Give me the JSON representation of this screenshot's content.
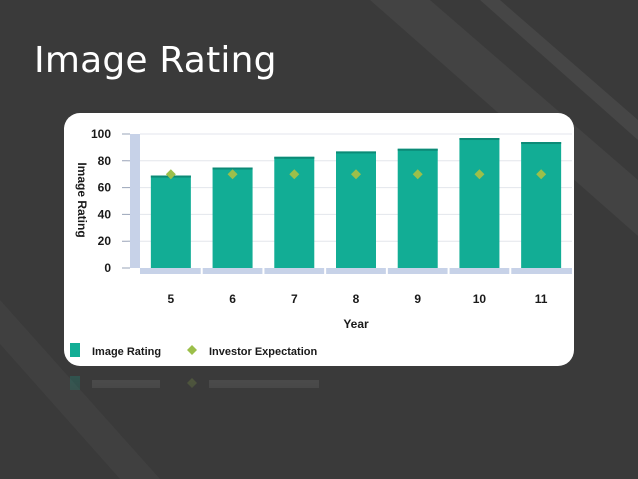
{
  "slide": {
    "title": "Image Rating",
    "colors": {
      "background": "#3a3a3a",
      "stripe": "#464646",
      "card": "#ffffff"
    }
  },
  "chart_data": {
    "type": "bar",
    "categories": [
      "5",
      "6",
      "7",
      "8",
      "9",
      "10",
      "11"
    ],
    "series": [
      {
        "name": "Image Rating",
        "type": "bar",
        "color": "#12ad95",
        "values": [
          69,
          75,
          83,
          87,
          89,
          97,
          94
        ]
      },
      {
        "name": "Investor Expectation",
        "type": "scatter",
        "marker": "diamond",
        "color": "#9cbf4a",
        "values": [
          70,
          70,
          70,
          70,
          70,
          70,
          70
        ]
      }
    ],
    "xlabel": "Year",
    "ylabel": "Image Rating",
    "ylim": [
      0,
      100
    ],
    "yticks": [
      0,
      20,
      40,
      60,
      80,
      100
    ],
    "grid": true,
    "legend_placement": "bottom-left"
  }
}
